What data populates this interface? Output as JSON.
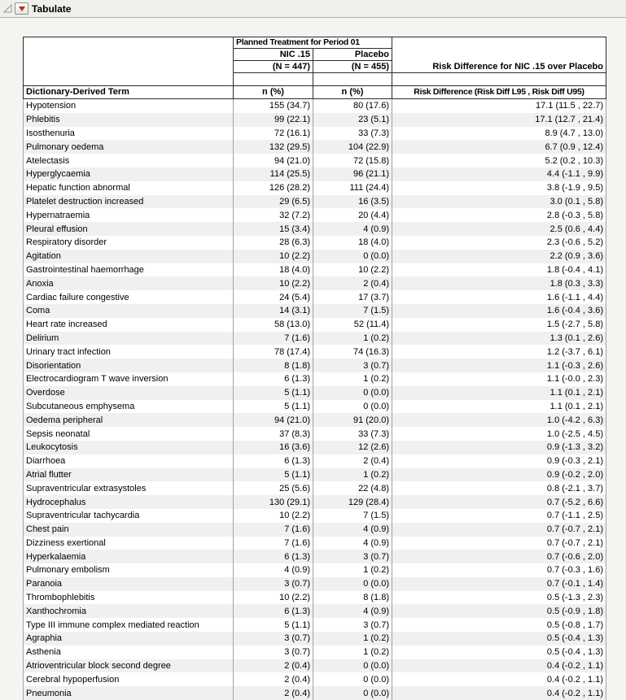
{
  "window": {
    "title": "Tabulate"
  },
  "icons": {
    "disclosure": "open-disclosure-triangle-icon",
    "menu_button": "red-triangle-menu-icon"
  },
  "colors": {
    "red_triangle": "#C42B1C",
    "stripe": "#F0F0F0",
    "header_border": "#2B2B2B"
  },
  "table": {
    "col_group_header": "Planned Treatment for Period 01",
    "risk_group_header": "Risk Difference for NIC .15 over Placebo",
    "term_header": "Dictionary-Derived Term",
    "risk_stat_header": "Risk Difference (Risk Diff L95 , Risk Diff U95)",
    "col_nic": {
      "label": "NIC .15",
      "n": "(N = 447)",
      "stat": "n (%)"
    },
    "col_placebo": {
      "label": "Placebo",
      "n": "(N = 455)",
      "stat": "n (%)"
    },
    "rows": [
      [
        "Hypotension",
        "155 (34.7)",
        "80 (17.6)",
        "17.1 (11.5 , 22.7)"
      ],
      [
        "Phlebitis",
        "99 (22.1)",
        "23 (5.1)",
        "17.1 (12.7 , 21.4)"
      ],
      [
        "Isosthenuria",
        "72 (16.1)",
        "33 (7.3)",
        "8.9 (4.7 , 13.0)"
      ],
      [
        "Pulmonary oedema",
        "132 (29.5)",
        "104 (22.9)",
        "6.7 (0.9 , 12.4)"
      ],
      [
        "Atelectasis",
        "94 (21.0)",
        "72 (15.8)",
        "5.2 (0.2 , 10.3)"
      ],
      [
        "Hyperglycaemia",
        "114 (25.5)",
        "96 (21.1)",
        "4.4 (-1.1 , 9.9)"
      ],
      [
        "Hepatic function abnormal",
        "126 (28.2)",
        "111 (24.4)",
        "3.8 (-1.9 , 9.5)"
      ],
      [
        "Platelet destruction increased",
        "29 (6.5)",
        "16 (3.5)",
        "3.0 (0.1 , 5.8)"
      ],
      [
        "Hypernatraemia",
        "32 (7.2)",
        "20 (4.4)",
        "2.8 (-0.3 , 5.8)"
      ],
      [
        "Pleural effusion",
        "15 (3.4)",
        "4 (0.9)",
        "2.5 (0.6 , 4.4)"
      ],
      [
        "Respiratory disorder",
        "28 (6.3)",
        "18 (4.0)",
        "2.3 (-0.6 , 5.2)"
      ],
      [
        "Agitation",
        "10 (2.2)",
        "0 (0.0)",
        "2.2 (0.9 , 3.6)"
      ],
      [
        "Gastrointestinal haemorrhage",
        "18 (4.0)",
        "10 (2.2)",
        "1.8 (-0.4 , 4.1)"
      ],
      [
        "Anoxia",
        "10 (2.2)",
        "2 (0.4)",
        "1.8 (0.3 , 3.3)"
      ],
      [
        "Cardiac failure congestive",
        "24 (5.4)",
        "17 (3.7)",
        "1.6 (-1.1 , 4.4)"
      ],
      [
        "Coma",
        "14 (3.1)",
        "7 (1.5)",
        "1.6 (-0.4 , 3.6)"
      ],
      [
        "Heart rate increased",
        "58 (13.0)",
        "52 (11.4)",
        "1.5 (-2.7 , 5.8)"
      ],
      [
        "Delirium",
        "7 (1.6)",
        "1 (0.2)",
        "1.3 (0.1 , 2.6)"
      ],
      [
        "Urinary tract infection",
        "78 (17.4)",
        "74 (16.3)",
        "1.2 (-3.7 , 6.1)"
      ],
      [
        "Disorientation",
        "8 (1.8)",
        "3 (0.7)",
        "1.1 (-0.3 , 2.6)"
      ],
      [
        "Electrocardiogram T wave inversion",
        "6 (1.3)",
        "1 (0.2)",
        "1.1 (-0.0 , 2.3)"
      ],
      [
        "Overdose",
        "5 (1.1)",
        "0 (0.0)",
        "1.1 (0.1 , 2.1)"
      ],
      [
        "Subcutaneous emphysema",
        "5 (1.1)",
        "0 (0.0)",
        "1.1 (0.1 , 2.1)"
      ],
      [
        "Oedema peripheral",
        "94 (21.0)",
        "91 (20.0)",
        "1.0 (-4.2 , 6.3)"
      ],
      [
        "Sepsis neonatal",
        "37 (8.3)",
        "33 (7.3)",
        "1.0 (-2.5 , 4.5)"
      ],
      [
        "Leukocytosis",
        "16 (3.6)",
        "12 (2.6)",
        "0.9 (-1.3 , 3.2)"
      ],
      [
        "Diarrhoea",
        "6 (1.3)",
        "2 (0.4)",
        "0.9 (-0.3 , 2.1)"
      ],
      [
        "Atrial flutter",
        "5 (1.1)",
        "1 (0.2)",
        "0.9 (-0.2 , 2.0)"
      ],
      [
        "Supraventricular extrasystoles",
        "25 (5.6)",
        "22 (4.8)",
        "0.8 (-2.1 , 3.7)"
      ],
      [
        "Hydrocephalus",
        "130 (29.1)",
        "129 (28.4)",
        "0.7 (-5.2 , 6.6)"
      ],
      [
        "Supraventricular tachycardia",
        "10 (2.2)",
        "7 (1.5)",
        "0.7 (-1.1 , 2.5)"
      ],
      [
        "Chest pain",
        "7 (1.6)",
        "4 (0.9)",
        "0.7 (-0.7 , 2.1)"
      ],
      [
        "Dizziness exertional",
        "7 (1.6)",
        "4 (0.9)",
        "0.7 (-0.7 , 2.1)"
      ],
      [
        "Hyperkalaemia",
        "6 (1.3)",
        "3 (0.7)",
        "0.7 (-0.6 , 2.0)"
      ],
      [
        "Pulmonary embolism",
        "4 (0.9)",
        "1 (0.2)",
        "0.7 (-0.3 , 1.6)"
      ],
      [
        "Paranoia",
        "3 (0.7)",
        "0 (0.0)",
        "0.7 (-0.1 , 1.4)"
      ],
      [
        "Thrombophlebitis",
        "10 (2.2)",
        "8 (1.8)",
        "0.5 (-1.3 , 2.3)"
      ],
      [
        "Xanthochromia",
        "6 (1.3)",
        "4 (0.9)",
        "0.5 (-0.9 , 1.8)"
      ],
      [
        "Type III immune complex mediated reaction",
        "5 (1.1)",
        "3 (0.7)",
        "0.5 (-0.8 , 1.7)"
      ],
      [
        "Agraphia",
        "3 (0.7)",
        "1 (0.2)",
        "0.5 (-0.4 , 1.3)"
      ],
      [
        "Asthenia",
        "3 (0.7)",
        "1 (0.2)",
        "0.5 (-0.4 , 1.3)"
      ],
      [
        "Atrioventricular block second degree",
        "2 (0.4)",
        "0 (0.0)",
        "0.4 (-0.2 , 1.1)"
      ],
      [
        "Cerebral hypoperfusion",
        "2 (0.4)",
        "0 (0.0)",
        "0.4 (-0.2 , 1.1)"
      ],
      [
        "Pneumonia",
        "2 (0.4)",
        "0 (0.0)",
        "0.4 (-0.2 , 1.1)"
      ]
    ]
  }
}
